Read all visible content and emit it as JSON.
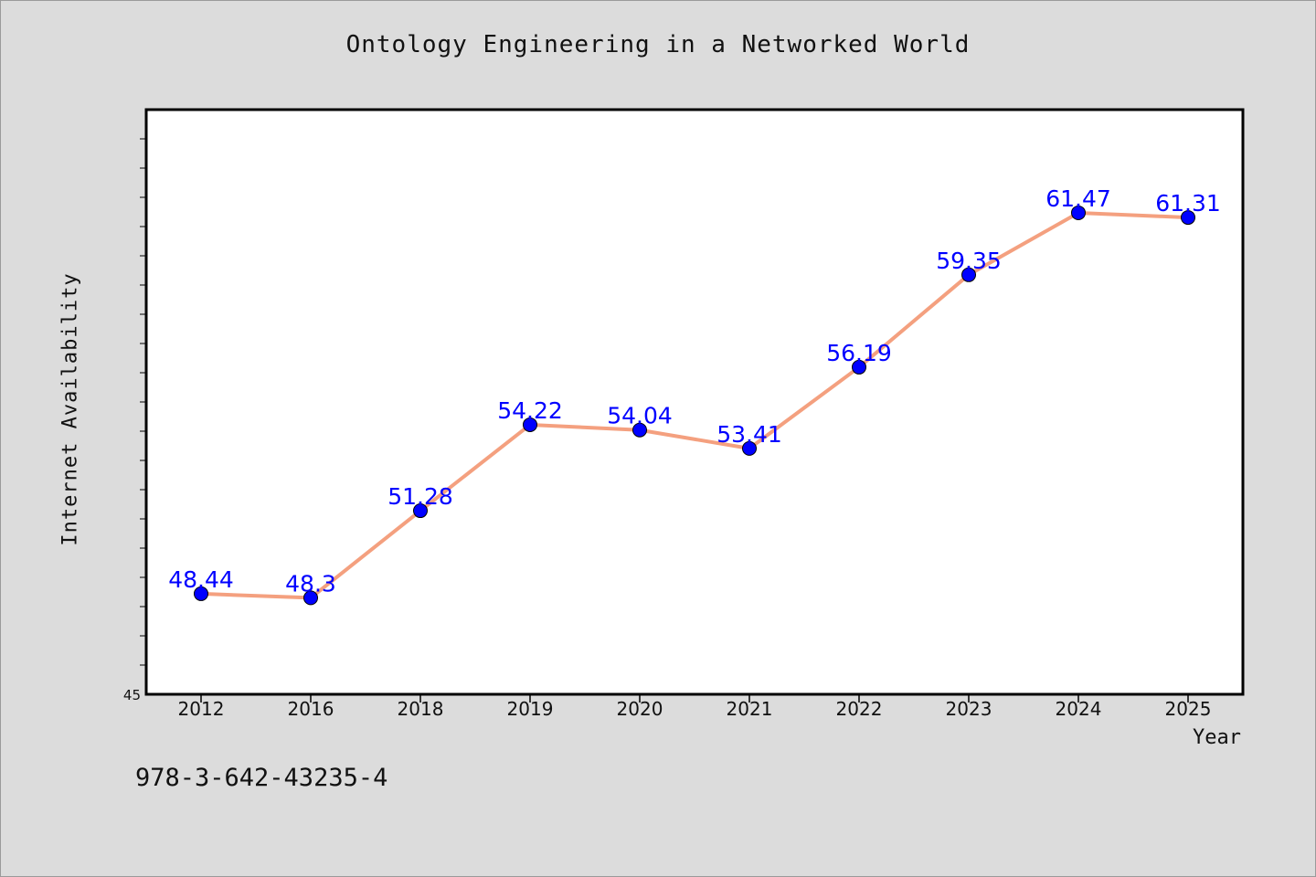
{
  "title": "Ontology Engineering in a Networked World",
  "footnote": "978-3-642-43235-4",
  "colors": {
    "background": "#dcdcdc",
    "plot_background": "#ffffff",
    "line": "#f4a07f",
    "marker": "#0000ff",
    "data_label": "#0000ff"
  },
  "chart_data": {
    "type": "line",
    "title": "Ontology Engineering in a Networked World",
    "xlabel": "Year",
    "ylabel": "Internet Availability",
    "categories": [
      "2012",
      "2016",
      "2018",
      "2019",
      "2020",
      "2021",
      "2022",
      "2023",
      "2024",
      "2025"
    ],
    "series": [
      {
        "values": [
          48.44,
          48.3,
          51.28,
          54.22,
          54.04,
          53.41,
          56.19,
          59.35,
          61.47,
          61.31
        ]
      }
    ],
    "data_labels": [
      "48.44",
      "48.3",
      "51.28",
      "54.22",
      "54.04",
      "53.41",
      "56.19",
      "59.35",
      "61.47",
      "61.31"
    ],
    "ylim": [
      45,
      65
    ],
    "y_tick_labels": [
      "45"
    ],
    "grid": false,
    "legend": "none"
  }
}
